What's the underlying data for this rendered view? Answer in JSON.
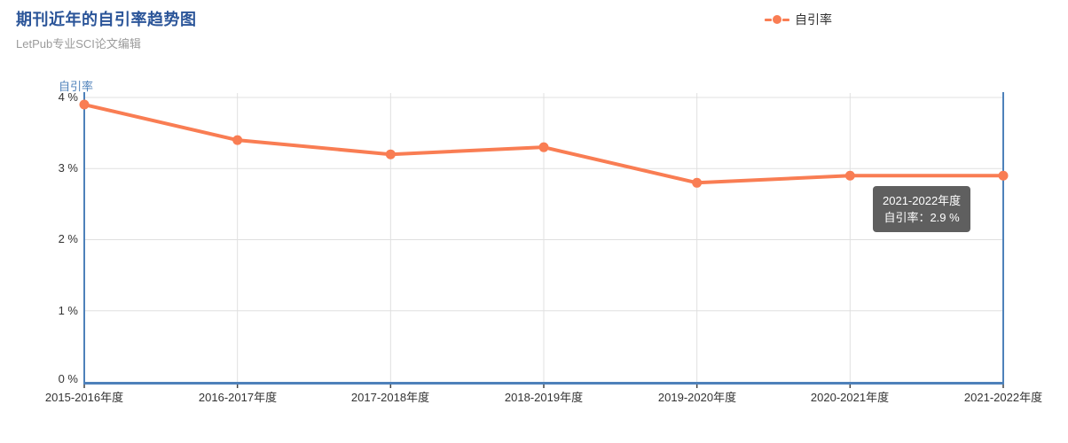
{
  "header": {
    "title": "期刊近年的自引率趋势图",
    "subtitle": "LetPub专业SCI论文编辑"
  },
  "legend": {
    "label": "自引率"
  },
  "chart_data": {
    "type": "line",
    "title": "期刊近年的自引率趋势图",
    "categories": [
      "2015-2016年度",
      "2016-2017年度",
      "2017-2018年度",
      "2018-2019年度",
      "2019-2020年度",
      "2020-2021年度",
      "2021-2022年度"
    ],
    "series": [
      {
        "name": "自引率",
        "color": "#f97d53",
        "values": [
          3.9,
          3.4,
          3.2,
          3.3,
          2.8,
          2.9,
          2.9
        ]
      }
    ],
    "xlabel": "",
    "ylabel": "自引率",
    "ylim": [
      0,
      4
    ],
    "y_ticks": [
      0,
      1,
      2,
      3,
      4
    ],
    "y_tick_labels": [
      "0 %",
      "1 %",
      "2 %",
      "3 %",
      "4 %"
    ],
    "grid": true,
    "legend_position": "top-right"
  },
  "tooltip": {
    "line1": "2021-2022年度",
    "line2": "自引率：2.9 %"
  },
  "colors": {
    "series_orange": "#f97d53",
    "axis_blue": "#4e81ba",
    "gridline": "#e0e0e0",
    "tick": "#444444",
    "title_blue": "#2b5599",
    "subtitle_gray": "#9b9b9b",
    "tooltip_bg": "#323232",
    "text": "#333333"
  }
}
